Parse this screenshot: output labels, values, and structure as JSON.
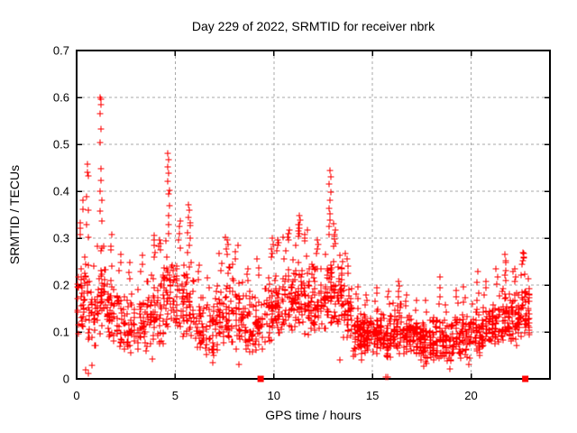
{
  "chart_data": {
    "type": "scatter",
    "title": "Day 229 of 2022, SRMTID for receiver nbrk",
    "xlabel": "GPS time / hours",
    "ylabel": "SRMTID / TECUs",
    "xlim": [
      0,
      24
    ],
    "ylim": [
      0,
      0.7
    ],
    "xticks": [
      "0",
      "5",
      "10",
      "15",
      "20"
    ],
    "yticks": [
      "0",
      "0.1",
      "0.2",
      "0.3",
      "0.4",
      "0.5",
      "0.6",
      "0.7"
    ],
    "grid": {
      "shown": true,
      "style": "dashed",
      "color": "#a8a8a8"
    },
    "marker": {
      "shape": "plus",
      "color": "#ff0000",
      "size": 7
    },
    "square_marker": {
      "shape": "filled-square",
      "color": "#ff0000",
      "size": 7
    },
    "legend": "none",
    "series_note": "dense scatter of SRMTID samples over 24h; squares mark events at y=0",
    "seed": 229,
    "density_bins_format": [
      "x_start_hours",
      "count",
      "band_low",
      "band_high",
      "tail_max",
      "tail_count",
      "spike_x_hours"
    ],
    "density_bins": [
      [
        0.0,
        38,
        0.07,
        0.3,
        0.34,
        3,
        0.15
      ],
      [
        0.5,
        38,
        0.04,
        0.28,
        0.4,
        4,
        0.55
      ],
      [
        1.0,
        42,
        0.08,
        0.32,
        0.46,
        6,
        1.22
      ],
      [
        1.5,
        38,
        0.06,
        0.26,
        0.31,
        3,
        1.72
      ],
      [
        2.0,
        34,
        0.06,
        0.22,
        0.27,
        3,
        2.2
      ],
      [
        2.5,
        34,
        0.05,
        0.2,
        0.25,
        3,
        2.7
      ],
      [
        3.0,
        34,
        0.06,
        0.22,
        0.27,
        3,
        3.3
      ],
      [
        3.5,
        38,
        0.05,
        0.25,
        0.3,
        4,
        3.9
      ],
      [
        4.0,
        38,
        0.06,
        0.27,
        0.3,
        4,
        4.2
      ],
      [
        4.5,
        40,
        0.1,
        0.3,
        0.4,
        5,
        4.64
      ],
      [
        5.0,
        38,
        0.08,
        0.27,
        0.34,
        5,
        5.2
      ],
      [
        5.5,
        38,
        0.08,
        0.26,
        0.33,
        5,
        5.7
      ],
      [
        6.0,
        32,
        0.05,
        0.2,
        0.25,
        3,
        6.2
      ],
      [
        6.5,
        30,
        0.04,
        0.18,
        0.22,
        2,
        6.7
      ],
      [
        7.0,
        34,
        0.05,
        0.22,
        0.27,
        3,
        7.3
      ],
      [
        7.5,
        38,
        0.06,
        0.26,
        0.3,
        4,
        7.62
      ],
      [
        8.0,
        38,
        0.06,
        0.25,
        0.29,
        3,
        8.1
      ],
      [
        8.5,
        34,
        0.05,
        0.2,
        0.24,
        3,
        8.7
      ],
      [
        9.0,
        34,
        0.05,
        0.21,
        0.26,
        3,
        9.2
      ],
      [
        9.5,
        38,
        0.07,
        0.25,
        0.29,
        4,
        9.9
      ],
      [
        10.0,
        40,
        0.08,
        0.27,
        0.3,
        4,
        10.2
      ],
      [
        10.5,
        42,
        0.09,
        0.29,
        0.32,
        4,
        10.72
      ],
      [
        11.0,
        44,
        0.1,
        0.3,
        0.33,
        5,
        11.3
      ],
      [
        11.5,
        42,
        0.09,
        0.29,
        0.32,
        4,
        11.62
      ],
      [
        12.0,
        40,
        0.09,
        0.26,
        0.3,
        4,
        12.2
      ],
      [
        12.5,
        44,
        0.1,
        0.3,
        0.37,
        5,
        12.85
      ],
      [
        13.0,
        44,
        0.09,
        0.28,
        0.31,
        5,
        13.08
      ],
      [
        13.5,
        42,
        0.08,
        0.23,
        0.27,
        3,
        13.7
      ],
      [
        14.0,
        52,
        0.04,
        0.16,
        0.2,
        3,
        14.2
      ],
      [
        14.5,
        52,
        0.05,
        0.15,
        0.18,
        3,
        14.7
      ],
      [
        15.0,
        52,
        0.05,
        0.16,
        0.2,
        3,
        15.2
      ],
      [
        15.5,
        48,
        0.04,
        0.15,
        0.19,
        3,
        15.82
      ],
      [
        16.0,
        48,
        0.05,
        0.17,
        0.2,
        3,
        16.3
      ],
      [
        16.5,
        44,
        0.05,
        0.15,
        0.18,
        3,
        16.7
      ],
      [
        17.0,
        44,
        0.04,
        0.14,
        0.17,
        2,
        17.2
      ],
      [
        17.5,
        44,
        0.03,
        0.13,
        0.17,
        2,
        17.7
      ],
      [
        18.0,
        44,
        0.04,
        0.15,
        0.2,
        3,
        18.4
      ],
      [
        18.5,
        40,
        0.03,
        0.13,
        0.16,
        2,
        18.7
      ],
      [
        19.0,
        40,
        0.04,
        0.15,
        0.19,
        3,
        19.3
      ],
      [
        19.5,
        40,
        0.04,
        0.15,
        0.2,
        3,
        19.62
      ],
      [
        20.0,
        44,
        0.05,
        0.16,
        0.21,
        3,
        20.32
      ],
      [
        20.5,
        44,
        0.06,
        0.17,
        0.21,
        3,
        20.7
      ],
      [
        21.0,
        44,
        0.07,
        0.19,
        0.24,
        3,
        21.3
      ],
      [
        21.5,
        44,
        0.07,
        0.2,
        0.25,
        4,
        21.73
      ],
      [
        22.0,
        44,
        0.07,
        0.2,
        0.24,
        4,
        22.2
      ],
      [
        22.5,
        48,
        0.08,
        0.24,
        0.27,
        4,
        22.65
      ]
    ],
    "peak_points": [
      [
        1.2,
        0.6
      ],
      [
        1.23,
        0.597
      ],
      [
        1.22,
        0.584
      ],
      [
        1.19,
        0.565
      ],
      [
        1.24,
        0.532
      ],
      [
        1.21,
        0.503
      ],
      [
        0.55,
        0.458
      ],
      [
        0.53,
        0.441
      ],
      [
        0.58,
        0.432
      ],
      [
        0.3,
        0.38
      ],
      [
        0.34,
        0.362
      ],
      [
        4.62,
        0.481
      ],
      [
        4.65,
        0.468
      ],
      [
        4.6,
        0.452
      ],
      [
        4.67,
        0.438
      ],
      [
        4.63,
        0.421
      ],
      [
        4.7,
        0.402
      ],
      [
        12.83,
        0.444
      ],
      [
        12.87,
        0.431
      ],
      [
        12.8,
        0.415
      ],
      [
        12.9,
        0.398
      ],
      [
        12.85,
        0.38
      ],
      [
        5.68,
        0.372
      ],
      [
        5.72,
        0.36
      ],
      [
        5.65,
        0.345
      ],
      [
        5.75,
        0.332
      ],
      [
        11.28,
        0.348
      ],
      [
        11.33,
        0.338
      ],
      [
        11.25,
        0.328
      ],
      [
        13.05,
        0.33
      ],
      [
        13.1,
        0.318
      ],
      [
        3.92,
        0.305
      ],
      [
        7.55,
        0.302
      ],
      [
        9.92,
        0.3
      ],
      [
        10.45,
        0.302
      ],
      [
        16.32,
        0.208
      ],
      [
        18.4,
        0.218
      ],
      [
        20.35,
        0.228
      ],
      [
        21.72,
        0.265
      ],
      [
        21.76,
        0.252
      ],
      [
        22.62,
        0.27
      ],
      [
        22.66,
        0.258
      ]
    ],
    "low_points": [
      [
        0.45,
        0.02
      ],
      [
        0.58,
        0.012
      ],
      [
        0.78,
        0.028
      ],
      [
        3.82,
        0.042
      ],
      [
        6.92,
        0.035
      ],
      [
        8.25,
        0.03
      ],
      [
        13.35,
        0.04
      ],
      [
        17.62,
        0.026
      ],
      [
        18.92,
        0.022
      ],
      [
        19.9,
        0.03
      ]
    ],
    "zero_plus_points": [
      [
        15.68,
        0.004
      ],
      [
        15.79,
        0.004
      ]
    ],
    "square_points": [
      [
        9.33,
        0.0
      ],
      [
        22.75,
        0.0
      ]
    ]
  }
}
